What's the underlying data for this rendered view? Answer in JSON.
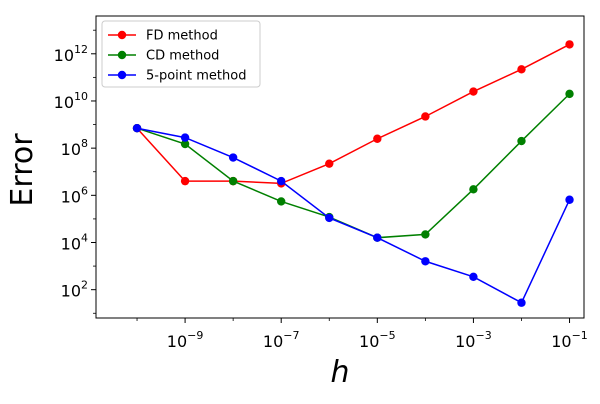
{
  "chart_data": {
    "type": "line",
    "xlabel": "h",
    "ylabel": "Error",
    "x_scale": "log",
    "y_scale": "log",
    "xlim": [
      1.4e-11,
      0.2
    ],
    "ylim": [
      6.3,
      40000000000000.0
    ],
    "x_ticks": [
      {
        "base": "10",
        "exp": "−9",
        "value": 1e-09
      },
      {
        "base": "10",
        "exp": "−7",
        "value": 1e-07
      },
      {
        "base": "10",
        "exp": "−5",
        "value": 1e-05
      },
      {
        "base": "10",
        "exp": "−3",
        "value": 0.001
      },
      {
        "base": "10",
        "exp": "−1",
        "value": 0.1
      }
    ],
    "y_ticks": [
      {
        "base": "10",
        "exp": "2",
        "value": 100.0
      },
      {
        "base": "10",
        "exp": "4",
        "value": 10000.0
      },
      {
        "base": "10",
        "exp": "6",
        "value": 1000000.0
      },
      {
        "base": "10",
        "exp": "8",
        "value": 100000000.0
      },
      {
        "base": "10",
        "exp": "10",
        "value": 10000000000.0
      },
      {
        "base": "10",
        "exp": "12",
        "value": 1000000000000.0
      }
    ],
    "x": [
      1e-10,
      1e-09,
      1e-08,
      1e-07,
      1e-06,
      1e-05,
      0.0001,
      0.001,
      0.01,
      0.1
    ],
    "grid": false,
    "legend_position": "top-left",
    "series": [
      {
        "name": "FD method",
        "color": "#ff0000",
        "values": [
          700000000.0,
          4000000.0,
          4000000.0,
          3200000.0,
          22000000.0,
          250000000.0,
          2200000000.0,
          25000000000.0,
          220000000000.0,
          2500000000000.0
        ]
      },
      {
        "name": "CD method",
        "color": "#008000",
        "values": [
          700000000.0,
          150000000.0,
          4000000.0,
          550000.0,
          120000.0,
          16000.0,
          22000.0,
          1800000.0,
          200000000.0,
          20000000000.0
        ]
      },
      {
        "name": "5-point method",
        "color": "#0000ff",
        "values": [
          700000000.0,
          280000000.0,
          40000000.0,
          4000000.0,
          110000.0,
          16000.0,
          1600.0,
          350.0,
          28.0,
          650000.0
        ]
      }
    ]
  }
}
